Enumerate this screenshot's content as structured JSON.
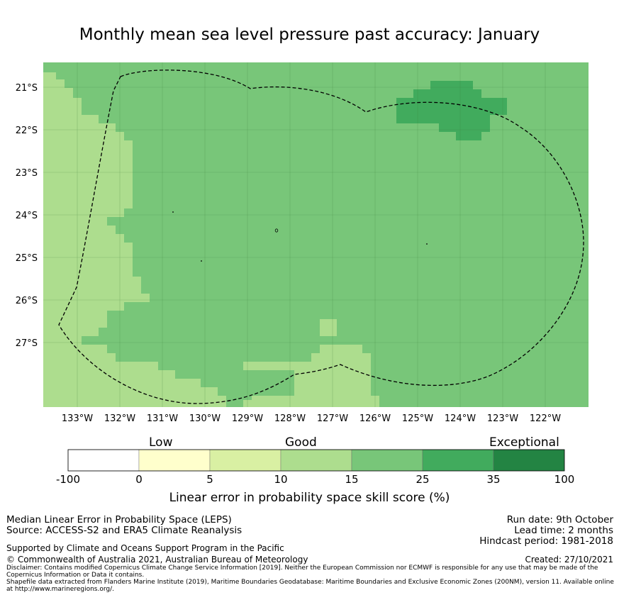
{
  "title": "Monthly mean sea level pressure past accuracy: January",
  "map": {
    "lon_labels": [
      "133°W",
      "132°W",
      "131°W",
      "130°W",
      "129°W",
      "128°W",
      "127°W",
      "126°W",
      "125°W",
      "124°W",
      "123°W",
      "122°W"
    ],
    "lat_labels": [
      "21°S",
      "22°S",
      "23°S",
      "24°S",
      "25°S",
      "26°S",
      "27°S"
    ]
  },
  "colorbar": {
    "category_labels": {
      "low": "Low",
      "good": "Good",
      "exceptional": "Exceptional"
    },
    "tick_labels": [
      "-100",
      "0",
      "5",
      "10",
      "15",
      "25",
      "35",
      "100"
    ],
    "colors": [
      "#ffffff",
      "#ffffcc",
      "#d9f0a3",
      "#addd8e",
      "#78c679",
      "#41ab5d",
      "#238443"
    ],
    "xlabel": "Linear error in probability space skill score (%)"
  },
  "footer": {
    "left_line1": "Median Linear Error in Probability Space (LEPS)",
    "left_line2": "Source: ACCESS-S2 and ERA5 Climate Reanalysis",
    "supported": "Supported by Climate and Oceans Support Program in the Pacific",
    "copyright": "© Commonwealth of Australia 2021, Australian Bureau of Meteorology",
    "run_date": "Run date: 9th October",
    "lead_time": "Lead time: 2 months",
    "hindcast": "Hindcast period: 1981-2018",
    "created": "Created: 27/10/2021",
    "disclaimer": "Disclaimer: Contains modified Copernicus Climate Change Service Information [2019]. Neither the European Commission nor ECMWF is responsible for any use that may be made of the Copernicus Information or Data it contains.",
    "shapefile": "Shapefile data extracted from Flanders Marine Institute (2019), Maritime Boundaries Geodatabase: Maritime Boundaries and Exclusive Economic Zones (200NM), version 11. Available online at http://www.marineregions.org/."
  }
}
